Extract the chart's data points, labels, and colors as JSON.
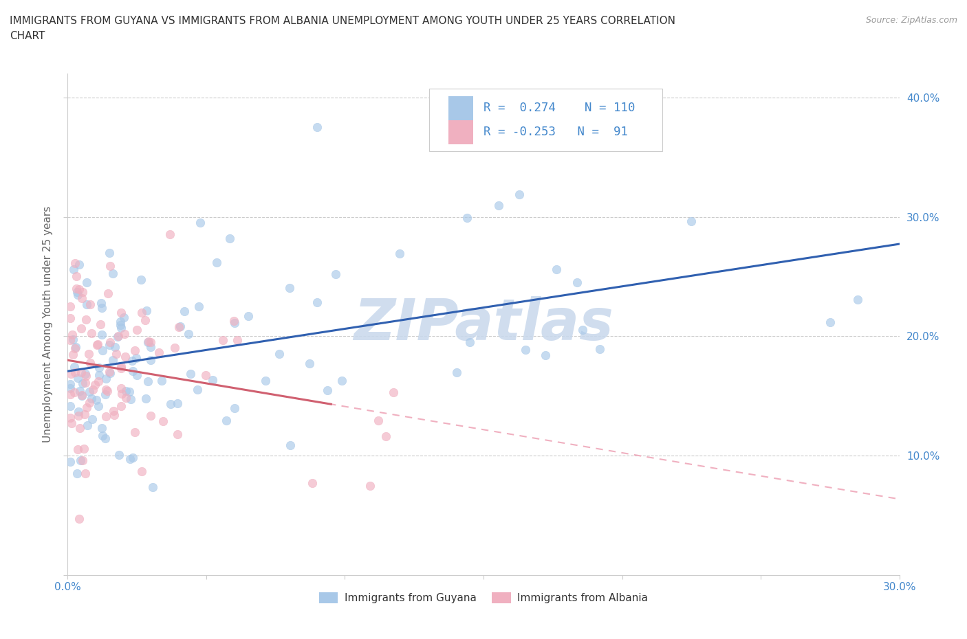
{
  "title_line1": "IMMIGRANTS FROM GUYANA VS IMMIGRANTS FROM ALBANIA UNEMPLOYMENT AMONG YOUTH UNDER 25 YEARS CORRELATION",
  "title_line2": "CHART",
  "source": "Source: ZipAtlas.com",
  "ylabel": "Unemployment Among Youth under 25 years",
  "xlim": [
    0.0,
    0.3
  ],
  "ylim": [
    0.0,
    0.42
  ],
  "guyana_color": "#a8c8e8",
  "albania_color": "#f0b0c0",
  "guyana_line_color": "#3060b0",
  "albania_line_solid": "#d06070",
  "albania_line_dash": "#f0b0c0",
  "guyana_R": 0.274,
  "guyana_N": 110,
  "albania_R": -0.253,
  "albania_N": 91,
  "background_color": "#ffffff",
  "watermark": "ZIPatlas",
  "watermark_color": "#c8d8ec",
  "grid_color": "#cccccc",
  "tick_label_color": "#4488cc",
  "ylabel_color": "#666666",
  "title_color": "#333333",
  "source_color": "#999999",
  "legend_text_color": "#333333",
  "legend_R_color": "#4488cc"
}
